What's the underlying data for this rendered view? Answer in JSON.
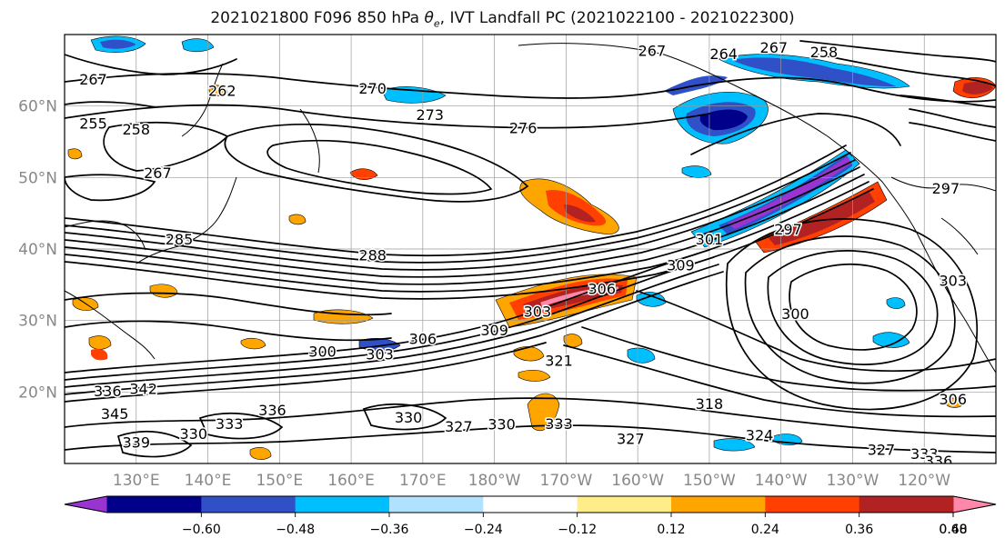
{
  "figure": {
    "title": "2021021800 F096 850 hPa θe, IVT Landfall PC (2021022100 - 2021022300)",
    "title_parts": {
      "prefix": "2021021800 F096 850 hPa ",
      "theta": "θ",
      "subscript": "e",
      "suffix": ", IVT Landfall PC (2021022100 - 2021022300)"
    }
  },
  "map": {
    "lat_labels": [
      "60°N",
      "50°N",
      "40°N",
      "30°N",
      "20°N"
    ],
    "lon_labels": [
      "130°E",
      "140°E",
      "150°E",
      "160°E",
      "170°E",
      "180°W",
      "170°W",
      "160°W",
      "150°W",
      "140°W",
      "130°W",
      "120°W"
    ],
    "contour_labels": [
      {
        "text": "267",
        "lat": 63.8,
        "lon": 124
      },
      {
        "text": "262",
        "lat": 62.2,
        "lon": 142
      },
      {
        "text": "255",
        "lat": 57.6,
        "lon": 124
      },
      {
        "text": "258",
        "lat": 56.8,
        "lon": 130
      },
      {
        "text": "267",
        "lat": 50.7,
        "lon": 133
      },
      {
        "text": "270",
        "lat": 62.5,
        "lon": 163
      },
      {
        "text": "273",
        "lat": 58.8,
        "lon": 171
      },
      {
        "text": "276",
        "lat": 57.0,
        "lon": 184
      },
      {
        "text": "267",
        "lat": 67.8,
        "lon": 202
      },
      {
        "text": "264",
        "lat": 67.3,
        "lon": 212
      },
      {
        "text": "267",
        "lat": 68.2,
        "lon": 219
      },
      {
        "text": "258",
        "lat": 67.6,
        "lon": 226
      },
      {
        "text": "285",
        "lat": 41.4,
        "lon": 136
      },
      {
        "text": "288",
        "lat": 39.2,
        "lon": 163
      },
      {
        "text": "297",
        "lat": 42.8,
        "lon": 221
      },
      {
        "text": "301",
        "lat": 41.4,
        "lon": 210
      },
      {
        "text": "306",
        "lat": 34.5,
        "lon": 195
      },
      {
        "text": "303",
        "lat": 31.3,
        "lon": 186
      },
      {
        "text": "309",
        "lat": 28.7,
        "lon": 180
      },
      {
        "text": "306",
        "lat": 27.5,
        "lon": 170
      },
      {
        "text": "303",
        "lat": 25.3,
        "lon": 164
      },
      {
        "text": "300",
        "lat": 25.7,
        "lon": 156
      },
      {
        "text": "300",
        "lat": 31.0,
        "lon": 222
      },
      {
        "text": "303",
        "lat": 35.6,
        "lon": 244
      },
      {
        "text": "297",
        "lat": 48.5,
        "lon": 243
      },
      {
        "text": "318",
        "lat": 18.4,
        "lon": 210
      },
      {
        "text": "324",
        "lat": 14.0,
        "lon": 217
      },
      {
        "text": "306",
        "lat": 19.0,
        "lon": 244
      },
      {
        "text": "327",
        "lat": 13.5,
        "lon": 199
      },
      {
        "text": "327",
        "lat": 15.2,
        "lon": 175
      },
      {
        "text": "330",
        "lat": 16.5,
        "lon": 168
      },
      {
        "text": "333",
        "lat": 15.6,
        "lon": 189
      },
      {
        "text": "330",
        "lat": 15.5,
        "lon": 181
      },
      {
        "text": "336",
        "lat": 17.5,
        "lon": 149
      },
      {
        "text": "342",
        "lat": 20.5,
        "lon": 131
      },
      {
        "text": "345",
        "lat": 17.0,
        "lon": 127
      },
      {
        "text": "336",
        "lat": 20.2,
        "lon": 126
      },
      {
        "text": "330",
        "lat": 14.2,
        "lon": 138
      },
      {
        "text": "333",
        "lat": 15.6,
        "lon": 143
      },
      {
        "text": "339",
        "lat": 13.0,
        "lon": 130
      },
      {
        "text": "327",
        "lat": 12.0,
        "lon": 234
      },
      {
        "text": "333",
        "lat": 11.4,
        "lon": 240
      },
      {
        "text": "336",
        "lat": 10.4,
        "lon": 242
      },
      {
        "text": "321",
        "lat": 24.4,
        "lon": 189
      },
      {
        "text": "309",
        "lat": 37.8,
        "lon": 206
      }
    ]
  },
  "colorbar": {
    "tick_labels": [
      "−0.60",
      "−0.48",
      "−0.36",
      "−0.24",
      "−0.12",
      "0.12",
      "0.24",
      "0.36",
      "0.48",
      "0.60"
    ],
    "bins": [
      "#9a34d1",
      "#00008b",
      "#3050c8",
      "#00bfff",
      "#b0e2ff",
      "#ffffff",
      "#ffee88",
      "#ffa500",
      "#ff4000",
      "#b22222",
      "#ff88aa"
    ]
  },
  "palette": {
    "purple": "#9a34d1",
    "navy": "#00008b",
    "blue": "#3050c8",
    "deepsky": "#00bfff",
    "lightblue": "#b0e2ff",
    "yellow": "#ffee88",
    "orange": "#ffa500",
    "redorange": "#ff4000",
    "firebrick": "#b22222",
    "pink": "#ff88aa"
  }
}
